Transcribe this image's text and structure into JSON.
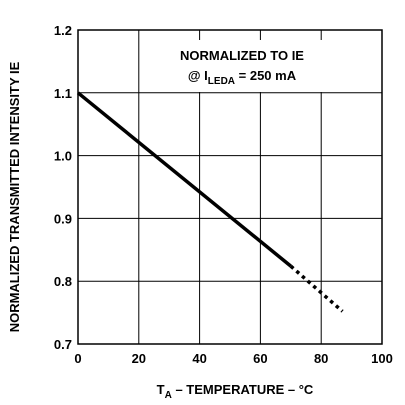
{
  "chart_data": {
    "type": "line",
    "xlabel_prefix": "T",
    "xlabel_sub": "A",
    "xlabel_rest": " – TEMPERATURE – °C",
    "ylabel": "NORMALIZED TRANSMITTED INTENSITY IE",
    "xlim": [
      0,
      100
    ],
    "ylim": [
      0.7,
      1.2
    ],
    "x_ticks": [
      "0",
      "20",
      "40",
      "60",
      "80",
      "100"
    ],
    "y_ticks": [
      "0.7",
      "0.8",
      "0.9",
      "1.0",
      "1.1",
      "1.2"
    ],
    "grid": true,
    "annotation": {
      "line1": "NORMALIZED TO IE",
      "line2_prefix": "@ I",
      "line2_sub": "LEDA",
      "line2_rest": " = 250 mA"
    },
    "series": [
      {
        "style": "solid",
        "x": [
          0,
          70
        ],
        "y": [
          1.1,
          0.824
        ]
      },
      {
        "style": "dotted",
        "x": [
          70,
          87
        ],
        "y": [
          0.824,
          0.752
        ]
      }
    ],
    "colors": {
      "line": "#000000",
      "grid": "#000000"
    }
  }
}
